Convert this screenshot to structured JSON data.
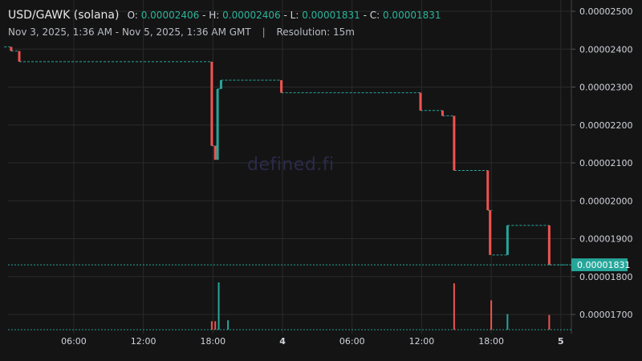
{
  "header": {
    "pair": "USD/GAWK (solana)",
    "o_label": "O:",
    "o_value": "0.00002406",
    "h_label": "H:",
    "h_value": "0.00002406",
    "l_label": "L:",
    "l_value": "0.00001831",
    "c_label": "C:",
    "c_value": "0.00001831",
    "date_range": "Nov 3, 2025, 1:36 AM - Nov 5, 2025, 1:36 AM GMT",
    "separator": "|",
    "resolution": "Resolution: 15m"
  },
  "watermark": "defined.fi",
  "colors": {
    "up": "#26a69a",
    "down": "#ef5350",
    "grid": "#2a2a2a",
    "background": "#141414",
    "price_tag": "#26a69a"
  },
  "chart_data": {
    "type": "candlestick",
    "last_price": 1.831e-05,
    "last_price_label": "0.00001831",
    "y_ticks": [
      {
        "v": 1.7e-05,
        "label": "0.00001700"
      },
      {
        "v": 1.8e-05,
        "label": "0.00001800"
      },
      {
        "v": 1.9e-05,
        "label": "0.00001900"
      },
      {
        "v": 2e-05,
        "label": "0.00002000"
      },
      {
        "v": 2.1e-05,
        "label": "0.00002100"
      },
      {
        "v": 2.2e-05,
        "label": "0.00002200"
      },
      {
        "v": 2.3e-05,
        "label": "0.00002300"
      },
      {
        "v": 2.4e-05,
        "label": "0.00002400"
      },
      {
        "v": 2.5e-05,
        "label": "0.00002500"
      }
    ],
    "x_ticks": [
      {
        "h": 6,
        "label": "06:00",
        "bold": false
      },
      {
        "h": 12,
        "label": "12:00",
        "bold": false
      },
      {
        "h": 18,
        "label": "18:00",
        "bold": false
      },
      {
        "h": 24,
        "label": "4",
        "bold": true
      },
      {
        "h": 30,
        "label": "06:00",
        "bold": false
      },
      {
        "h": 36,
        "label": "12:00",
        "bold": false
      },
      {
        "h": 42,
        "label": "18:00",
        "bold": false
      },
      {
        "h": 48,
        "label": "5",
        "bold": true
      }
    ],
    "price_steps": [
      {
        "h0": 0.0,
        "h1": 0.6,
        "p": 2.406e-05
      },
      {
        "h0": 0.6,
        "h1": 1.3,
        "p": 2.395e-05
      },
      {
        "h0": 1.3,
        "h1": 17.9,
        "p": 2.367e-05
      },
      {
        "h0": 17.9,
        "h1": 18.4,
        "p": 2.145e-05
      },
      {
        "h0": 18.4,
        "h1": 18.7,
        "p": 2.295e-05
      },
      {
        "h0": 18.7,
        "h1": 23.9,
        "p": 2.318e-05
      },
      {
        "h0": 23.9,
        "h1": 35.9,
        "p": 2.285e-05
      },
      {
        "h0": 35.9,
        "h1": 37.8,
        "p": 2.238e-05
      },
      {
        "h0": 37.8,
        "h1": 38.8,
        "p": 2.224e-05
      },
      {
        "h0": 38.8,
        "h1": 41.7,
        "p": 2.08e-05
      },
      {
        "h0": 41.7,
        "h1": 42.1,
        "p": 1.975e-05
      },
      {
        "h0": 42.1,
        "h1": 43.4,
        "p": 1.857e-05
      },
      {
        "h0": 43.4,
        "h1": 47.0,
        "p": 1.935e-05
      },
      {
        "h0": 47.0,
        "h1": 48.8,
        "p": 1.831e-05
      }
    ],
    "candles": [
      {
        "h": 0.6,
        "o": 2.406e-05,
        "c": 2.395e-05
      },
      {
        "h": 1.3,
        "o": 2.395e-05,
        "c": 2.367e-05
      },
      {
        "h": 17.9,
        "o": 2.367e-05,
        "c": 2.145e-05
      },
      {
        "h": 18.2,
        "o": 2.145e-05,
        "c": 2.108e-05
      },
      {
        "h": 18.4,
        "o": 2.108e-05,
        "c": 2.295e-05
      },
      {
        "h": 18.7,
        "o": 2.295e-05,
        "c": 2.318e-05
      },
      {
        "h": 23.9,
        "o": 2.318e-05,
        "c": 2.285e-05
      },
      {
        "h": 35.9,
        "o": 2.285e-05,
        "c": 2.238e-05
      },
      {
        "h": 37.8,
        "o": 2.238e-05,
        "c": 2.224e-05
      },
      {
        "h": 38.8,
        "o": 2.224e-05,
        "c": 2.08e-05
      },
      {
        "h": 41.7,
        "o": 2.08e-05,
        "c": 1.975e-05
      },
      {
        "h": 41.9,
        "o": 1.975e-05,
        "c": 1.857e-05
      },
      {
        "h": 43.4,
        "o": 1.857e-05,
        "c": 1.935e-05
      },
      {
        "h": 47.0,
        "o": 1.935e-05,
        "c": 1.831e-05
      }
    ],
    "volume_spikes": [
      {
        "h": 17.9,
        "rel": 0.18,
        "up": false
      },
      {
        "h": 18.2,
        "rel": 0.18,
        "up": false
      },
      {
        "h": 18.5,
        "rel": 1.0,
        "up": true
      },
      {
        "h": 19.3,
        "rel": 0.2,
        "up": true
      },
      {
        "h": 38.8,
        "rel": 0.98,
        "up": false
      },
      {
        "h": 42.0,
        "rel": 0.62,
        "up": false
      },
      {
        "h": 43.4,
        "rel": 0.33,
        "up": true
      },
      {
        "h": 47.0,
        "rel": 0.31,
        "up": false
      }
    ]
  }
}
